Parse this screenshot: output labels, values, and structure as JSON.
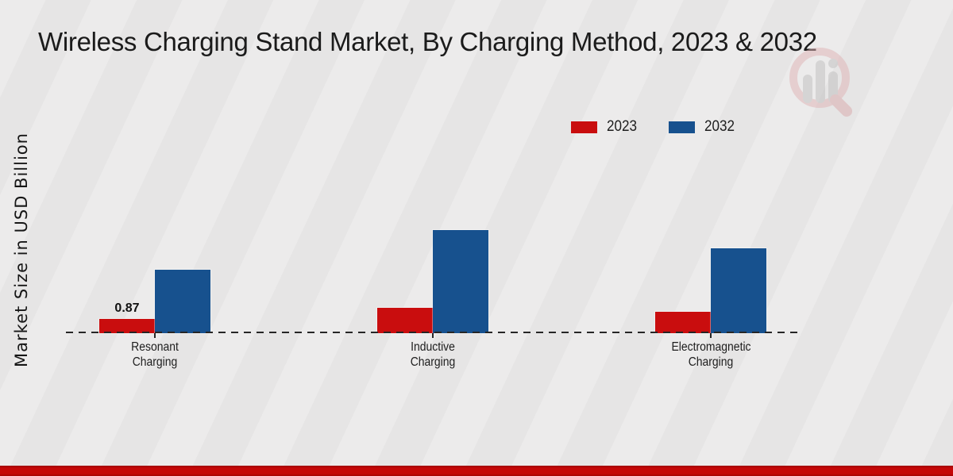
{
  "title": "Wireless Charging Stand Market, By Charging Method, 2023 & 2032",
  "colors": {
    "series_2023": "#c90d0e",
    "series_2032": "#17518e",
    "footer_bar": "#c50707",
    "axis": "#262626",
    "background": "#e9e9e9",
    "watermark_ring": "#dfb3b5",
    "watermark_bars": "#bfbfbf"
  },
  "legend": {
    "items": [
      {
        "label": "2023",
        "color": "#c90d0e"
      },
      {
        "label": "2032",
        "color": "#17518e"
      }
    ]
  },
  "chart_data": {
    "type": "bar",
    "title": "Wireless Charging Stand Market, By Charging Method, 2023 & 2032",
    "xlabel": "",
    "ylabel": "Market Size in USD Billion",
    "categories": [
      "Resonant Charging",
      "Inductive Charging",
      "Electromagnetic Charging"
    ],
    "series": [
      {
        "name": "2023",
        "color": "#c90d0e",
        "values": [
          0.87,
          1.55,
          1.3
        ]
      },
      {
        "name": "2032",
        "color": "#17518e",
        "values": [
          3.85,
          6.28,
          5.17
        ]
      }
    ],
    "value_labels_shown": [
      {
        "category_index": 0,
        "series_name": "2023",
        "text": "0.87"
      }
    ],
    "ylim": [
      0,
      7
    ],
    "grid": false,
    "legend_position": "top-right",
    "baseline_style": "dashed"
  }
}
